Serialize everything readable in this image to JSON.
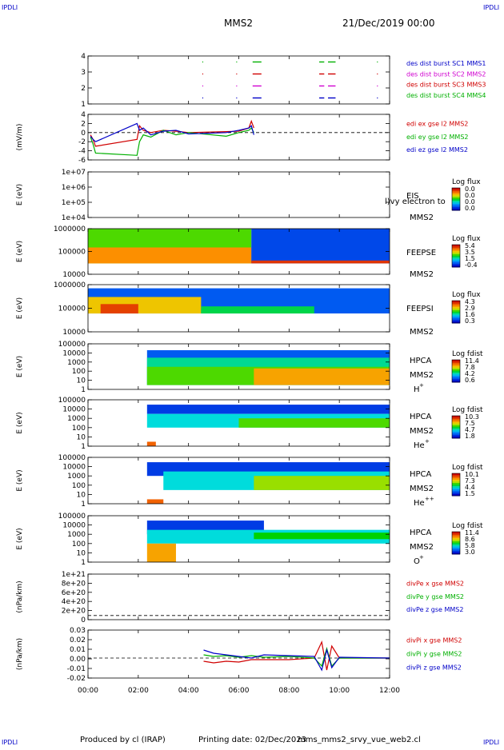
{
  "corner_mark": "IPDLI",
  "header": {
    "spacecraft": "MMS2",
    "datetime": "21/Dec/2019 00:00"
  },
  "footer": {
    "produced_by": "Produced by cl (IRAP)",
    "printing_date": "Printing date: 02/Dec/2023",
    "filename": "mms_mms2_srvy_vue_web2.cl"
  },
  "time_axis": {
    "ticks": [
      "00:00",
      "02:00",
      "04:00",
      "06:00",
      "08:00",
      "10:00",
      "12:00"
    ]
  },
  "chart_data": [
    {
      "type": "line",
      "id": "burst",
      "ylabel": "",
      "ylim": [
        0.5,
        4.5
      ],
      "yticks": [
        "4",
        "3",
        "2",
        "1"
      ],
      "legend": [
        {
          "text": "des dist burst SC1 MMS1",
          "color": "#0000c8"
        },
        {
          "text": "des dist burst SC2 MMS2",
          "color": "#d000d0"
        },
        {
          "text": "des dist burst SC3 MMS3",
          "color": "#d00000"
        },
        {
          "text": "des dist burst SC4 MMS4",
          "color": "#00b000"
        }
      ],
      "series": [
        {
          "level": 4,
          "color": "#00b000",
          "intervals": [
            [
              4.55,
              4.57
            ],
            [
              5.9,
              5.93
            ],
            [
              6.55,
              6.9
            ],
            [
              9.2,
              9.4
            ],
            [
              9.55,
              9.85
            ],
            [
              11.5,
              11.52
            ]
          ]
        },
        {
          "level": 3,
          "color": "#d00000",
          "intervals": [
            [
              4.55,
              4.57
            ],
            [
              5.9,
              5.93
            ],
            [
              6.55,
              6.9
            ],
            [
              9.2,
              9.4
            ],
            [
              9.55,
              9.85
            ],
            [
              11.5,
              11.52
            ]
          ]
        },
        {
          "level": 2,
          "color": "#d000d0",
          "intervals": [
            [
              4.55,
              4.57
            ],
            [
              5.9,
              5.93
            ],
            [
              6.55,
              6.9
            ],
            [
              9.2,
              9.4
            ],
            [
              9.55,
              9.85
            ],
            [
              11.5,
              11.52
            ]
          ]
        },
        {
          "level": 1,
          "color": "#0000c8",
          "intervals": [
            [
              4.55,
              4.57
            ],
            [
              5.9,
              5.93
            ],
            [
              6.55,
              6.9
            ],
            [
              9.2,
              9.4
            ],
            [
              9.55,
              9.85
            ],
            [
              11.5,
              11.52
            ]
          ]
        }
      ]
    },
    {
      "type": "line",
      "id": "edi",
      "ylabel": "(mV/m)",
      "ylim": [
        -6,
        4
      ],
      "yticks": [
        "4",
        "2",
        "0",
        "-2",
        "-4",
        "-6"
      ],
      "legend": [
        {
          "text": "edi ex gse l2 MMS2",
          "color": "#d00000"
        },
        {
          "text": "edi ey gse l2 MMS2",
          "color": "#00b000"
        },
        {
          "text": "edi ez gse l2 MMS2",
          "color": "#0000c8"
        }
      ],
      "series": [
        {
          "name": "edi ex gse l2 MMS2",
          "color": "#d00000",
          "x": [
            0.1,
            0.2,
            0.3,
            1.95,
            2.05,
            2.2,
            2.5,
            3.0,
            3.5,
            4.0,
            5.5,
            6.0,
            6.4,
            6.5,
            6.6
          ],
          "y": [
            -0.5,
            -1.5,
            -3.0,
            -1.5,
            1.5,
            0.5,
            0.0,
            0.5,
            0.3,
            0.0,
            0.2,
            0.3,
            1.0,
            2.5,
            1.0
          ]
        },
        {
          "name": "edi ey gse l2 MMS2",
          "color": "#00b000",
          "x": [
            0.1,
            0.2,
            0.3,
            1.95,
            2.05,
            2.2,
            2.5,
            3.0,
            3.5,
            4.0,
            5.5,
            6.0,
            6.4,
            6.5,
            6.6
          ],
          "y": [
            -1.0,
            -2.5,
            -4.5,
            -5.0,
            -2.0,
            -0.5,
            -1.0,
            0.5,
            -0.5,
            0.0,
            -0.8,
            0.0,
            0.5,
            1.0,
            0.0
          ]
        },
        {
          "name": "edi ez gse l2 MMS2",
          "color": "#0000c8",
          "x": [
            0.1,
            0.2,
            0.3,
            1.95,
            2.05,
            2.2,
            2.5,
            3.0,
            3.5,
            4.0,
            5.5,
            6.0,
            6.4,
            6.5,
            6.6
          ],
          "y": [
            -0.8,
            -1.5,
            -2.0,
            2.0,
            0.5,
            1.0,
            -0.5,
            0.3,
            0.5,
            -0.3,
            0.0,
            0.5,
            1.0,
            1.5,
            -0.5
          ]
        }
      ]
    },
    {
      "type": "heatmap",
      "id": "eis",
      "ylabel": "E (eV)",
      "yscale": "log",
      "ylim": [
        10000,
        10000000
      ],
      "yticks": [
        "1e+07",
        "1e+06",
        "1e+05",
        "1e+04"
      ],
      "instrument": [
        "EIS",
        "MMS2"
      ],
      "overlay_text": "l)vy electron to",
      "colorbar": {
        "title": "Log flux",
        "ticks": [
          "0.0",
          "0.0",
          "0.0",
          "0.0"
        ]
      },
      "has_data": false
    },
    {
      "type": "heatmap",
      "id": "feepse",
      "ylabel": "E (eV)",
      "yscale": "log",
      "ylim": [
        10000,
        1000000
      ],
      "yticks": [
        "1000000",
        "100000",
        "10000"
      ],
      "instrument": [
        "FEEPSE",
        "MMS2"
      ],
      "colorbar": {
        "title": "Log flux",
        "ticks": [
          "5.4",
          "3.5",
          "1.5",
          "-0.4"
        ]
      },
      "regions": [
        {
          "t0": 0.0,
          "t1": 6.5,
          "e0": 30000,
          "e1": 1000000,
          "value": 0.55
        },
        {
          "t0": 0.0,
          "t1": 6.5,
          "e0": 30000,
          "e1": 150000,
          "value": 0.78
        },
        {
          "t0": 6.5,
          "t1": 12.0,
          "e0": 30000,
          "e1": 1000000,
          "value": 0.12
        },
        {
          "t0": 6.5,
          "t1": 12.0,
          "e0": 30000,
          "e1": 40000,
          "value": 0.92
        }
      ]
    },
    {
      "type": "heatmap",
      "id": "feepsi",
      "ylabel": "E (eV)",
      "yscale": "log",
      "ylim": [
        10000,
        1000000
      ],
      "yticks": [
        "1000000",
        "100000",
        "10000"
      ],
      "instrument": [
        "FEEPSI",
        "MMS2"
      ],
      "colorbar": {
        "title": "Log flux",
        "ticks": [
          "4.3",
          "2.9",
          "1.6",
          "0.3"
        ]
      },
      "regions": [
        {
          "t0": 0.0,
          "t1": 12.0,
          "e0": 60000,
          "e1": 700000,
          "value": 0.15
        },
        {
          "t0": 0.0,
          "t1": 4.5,
          "e0": 60000,
          "e1": 300000,
          "value": 0.7
        },
        {
          "t0": 0.5,
          "t1": 2.0,
          "e0": 60000,
          "e1": 150000,
          "value": 0.9
        },
        {
          "t0": 4.5,
          "t1": 9.0,
          "e0": 60000,
          "e1": 120000,
          "value": 0.45
        }
      ]
    },
    {
      "type": "heatmap",
      "id": "hpca_h",
      "ylabel": "E (eV)",
      "yscale": "log",
      "ylim": [
        1,
        100000
      ],
      "yticks": [
        "100000",
        "10000",
        "1000",
        "100",
        "10",
        "1"
      ],
      "instrument": [
        "HPCA",
        "MMS2"
      ],
      "species": "H",
      "species_sup": "+",
      "colorbar": {
        "title": "Log fdist",
        "ticks": [
          "11.4",
          "7.8",
          "4.2",
          "0.6"
        ]
      },
      "regions": [
        {
          "t0": 2.35,
          "t1": 12.0,
          "e0": 3,
          "e1": 20000,
          "value": 0.15
        },
        {
          "t0": 2.35,
          "t1": 12.0,
          "e0": 3,
          "e1": 3000,
          "value": 0.4
        },
        {
          "t0": 2.35,
          "t1": 12.0,
          "e0": 3,
          "e1": 300,
          "value": 0.55
        },
        {
          "t0": 6.6,
          "t1": 12.0,
          "e0": 3,
          "e1": 200,
          "value": 0.75
        }
      ]
    },
    {
      "type": "heatmap",
      "id": "hpca_he",
      "ylabel": "E (eV)",
      "yscale": "log",
      "ylim": [
        1,
        100000
      ],
      "yticks": [
        "100000",
        "10000",
        "1000",
        "100",
        "10",
        "1"
      ],
      "instrument": [
        "HPCA",
        "MMS2"
      ],
      "species": "He",
      "species_sup": "+",
      "colorbar": {
        "title": "Log fdist",
        "ticks": [
          "10.3",
          "7.5",
          "4.7",
          "1.8"
        ]
      },
      "regions": [
        {
          "t0": 2.35,
          "t1": 12.0,
          "e0": 3000,
          "e1": 30000,
          "value": 0.1
        },
        {
          "t0": 2.35,
          "t1": 12.0,
          "e0": 100,
          "e1": 3000,
          "value": 0.35
        },
        {
          "t0": 6.0,
          "t1": 12.0,
          "e0": 100,
          "e1": 1000,
          "value": 0.55
        },
        {
          "t0": 2.35,
          "t1": 2.7,
          "e0": 1,
          "e1": 3,
          "value": 0.85
        }
      ]
    },
    {
      "type": "heatmap",
      "id": "hpca_hepp",
      "ylabel": "E (eV)",
      "yscale": "log",
      "ylim": [
        1,
        100000
      ],
      "yticks": [
        "100000",
        "10000",
        "1000",
        "100",
        "10",
        "1"
      ],
      "instrument": [
        "HPCA",
        "MMS2"
      ],
      "species": "He",
      "species_sup": "++",
      "colorbar": {
        "title": "Log fdist",
        "ticks": [
          "10.1",
          "7.3",
          "4.4",
          "1.5"
        ]
      },
      "regions": [
        {
          "t0": 2.35,
          "t1": 12.0,
          "e0": 1000,
          "e1": 30000,
          "value": 0.1
        },
        {
          "t0": 3.0,
          "t1": 12.0,
          "e0": 30,
          "e1": 3000,
          "value": 0.35
        },
        {
          "t0": 6.6,
          "t1": 12.0,
          "e0": 30,
          "e1": 1000,
          "value": 0.6
        },
        {
          "t0": 2.35,
          "t1": 3.0,
          "e0": 1,
          "e1": 3,
          "value": 0.85
        }
      ]
    },
    {
      "type": "heatmap",
      "id": "hpca_o",
      "ylabel": "E (eV)",
      "yscale": "log",
      "ylim": [
        1,
        100000
      ],
      "yticks": [
        "100000",
        "10000",
        "1000",
        "100",
        "10",
        "1"
      ],
      "instrument": [
        "HPCA",
        "MMS2"
      ],
      "species": "O",
      "species_sup": "+",
      "colorbar": {
        "title": "Log fdist",
        "ticks": [
          "11.4",
          "8.6",
          "5.8",
          "3.0"
        ]
      },
      "regions": [
        {
          "t0": 2.35,
          "t1": 7.0,
          "e0": 1000,
          "e1": 30000,
          "value": 0.1
        },
        {
          "t0": 2.35,
          "t1": 12.0,
          "e0": 100,
          "e1": 3000,
          "value": 0.35
        },
        {
          "t0": 6.6,
          "t1": 12.0,
          "e0": 300,
          "e1": 1500,
          "value": 0.5
        },
        {
          "t0": 2.35,
          "t1": 3.5,
          "e0": 1,
          "e1": 100,
          "value": 0.75
        }
      ]
    },
    {
      "type": "line",
      "id": "divpe",
      "ylabel": "(nPa/km)",
      "ylim": [
        -1e+20,
        1e+21
      ],
      "yticks": [
        "1e+21",
        "8e+20",
        "6e+20",
        "4e+20",
        "2e+20",
        "0"
      ],
      "legend": [
        {
          "text": "divPe x gse MMS2",
          "color": "#d00000"
        },
        {
          "text": "divPe y gse MMS2",
          "color": "#00b000"
        },
        {
          "text": "divPe z gse MMS2",
          "color": "#0000c8"
        }
      ],
      "series": []
    },
    {
      "type": "line",
      "id": "divpi",
      "ylabel": "(nPa/km)",
      "ylim": [
        -0.025,
        0.035
      ],
      "yticks": [
        "0.03",
        "0.02",
        "0.01",
        "0.00",
        "-0.01",
        "-0.02"
      ],
      "legend": [
        {
          "text": "divPi x gse MMS2",
          "color": "#d00000"
        },
        {
          "text": "divPi y gse MMS2",
          "color": "#00b000"
        },
        {
          "text": "divPi z gse MMS2",
          "color": "#0000c8"
        }
      ],
      "series": [
        {
          "name": "divPi x gse MMS2",
          "color": "#d00000",
          "x": [
            4.6,
            5.0,
            5.5,
            6.0,
            6.5,
            7.0,
            8.0,
            9.0,
            9.3,
            9.5,
            9.7,
            10.0,
            12.0
          ],
          "y": [
            -0.004,
            -0.006,
            -0.004,
            -0.005,
            -0.002,
            -0.002,
            -0.002,
            0.0,
            0.02,
            -0.015,
            0.015,
            0.0,
            0.0
          ]
        },
        {
          "name": "divPi y gse MMS2",
          "color": "#00b000",
          "x": [
            4.6,
            5.0,
            5.5,
            6.0,
            6.5,
            7.0,
            8.0,
            9.0,
            9.3,
            9.5,
            9.7,
            10.0,
            12.0
          ],
          "y": [
            0.004,
            0.002,
            0.003,
            0.001,
            0.003,
            0.001,
            0.002,
            0.0,
            -0.01,
            0.012,
            -0.01,
            0.0,
            0.0
          ]
        },
        {
          "name": "divPi z gse MMS2",
          "color": "#0000c8",
          "x": [
            4.6,
            5.0,
            5.5,
            6.0,
            6.5,
            7.0,
            8.0,
            9.0,
            9.3,
            9.5,
            9.7,
            10.0,
            12.0
          ],
          "y": [
            0.01,
            0.006,
            0.004,
            0.002,
            0.0,
            0.004,
            0.003,
            0.002,
            -0.015,
            0.01,
            -0.012,
            0.001,
            0.0
          ]
        }
      ]
    }
  ]
}
